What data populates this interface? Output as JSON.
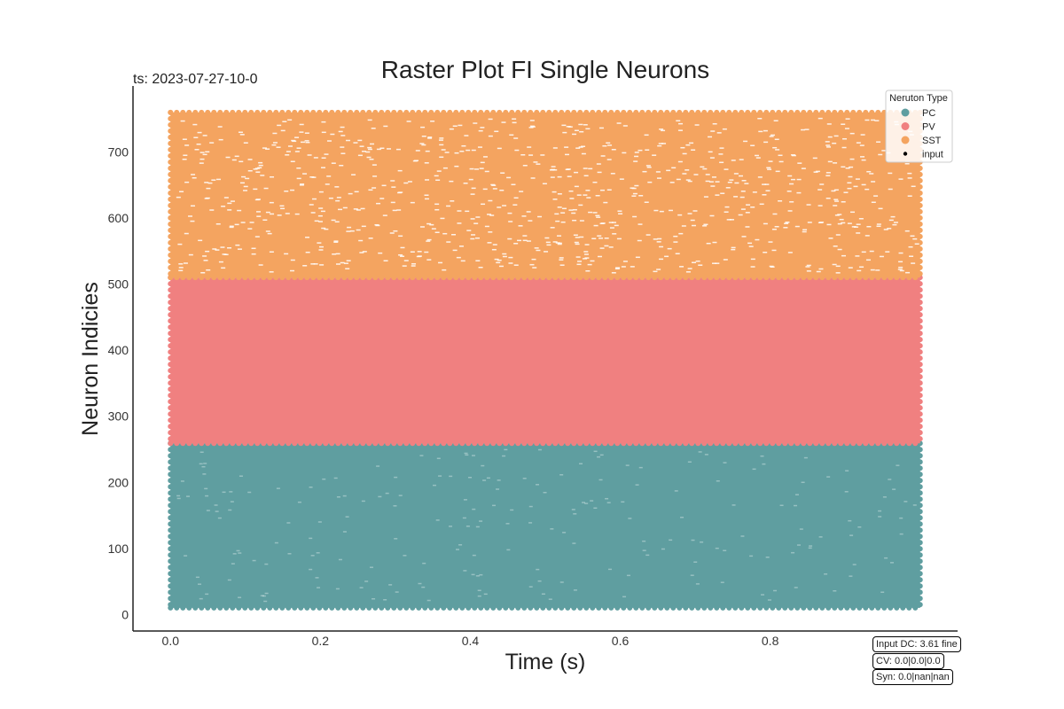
{
  "chart_data": {
    "type": "scatter",
    "title": "Raster Plot FI Single Neurons",
    "subtitle": "ts: 2023-07-27-10-0",
    "xlabel": "Time (s)",
    "ylabel": "Neuron Indicies",
    "xlim": [
      -0.05,
      1.05
    ],
    "ylim": [
      -25,
      800
    ],
    "xticks": [
      0.0,
      0.2,
      0.4,
      0.6,
      0.8
    ],
    "xtick_labels": [
      "0.0",
      "0.2",
      "0.4",
      "0.6",
      "0.8"
    ],
    "yticks": [
      0,
      100,
      200,
      300,
      400,
      500,
      600,
      700
    ],
    "ytick_labels": [
      "0",
      "100",
      "200",
      "300",
      "400",
      "500",
      "600",
      "700"
    ],
    "grid": false,
    "legend_placement": "top-right",
    "legend_title": "Neruton Type",
    "series": [
      {
        "name": "PC",
        "color": "#5f9ea0",
        "neuron_range": [
          10,
          259
        ],
        "time_range": [
          0.0,
          1.0
        ]
      },
      {
        "name": "PV",
        "color": "#f08080",
        "neuron_range": [
          259,
          510
        ],
        "time_range": [
          0.0,
          1.0
        ]
      },
      {
        "name": "SST",
        "color": "#f4a460",
        "neuron_range": [
          510,
          760
        ],
        "time_range": [
          0.0,
          1.0
        ]
      },
      {
        "name": "input",
        "color": "#000000",
        "neuron_range": [],
        "time_range": []
      }
    ]
  },
  "info_boxes": {
    "input_dc": "Input DC: 3.61 fine",
    "cv": "CV: 0.0|0.0|0.0",
    "syn": "Syn: 0.0|nan|nan"
  }
}
